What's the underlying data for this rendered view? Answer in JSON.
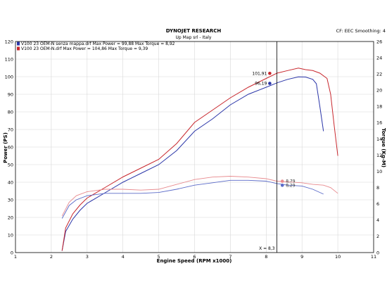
{
  "header": {
    "title": "DYNOJET RESEARCH",
    "subtitle": "Up Map srl - Italy",
    "corner": "CF: EEC  Smoothing: 4"
  },
  "chart_data": {
    "type": "line",
    "xlabel": "Engine Speed (RPM x1000)",
    "ylabel_left": "Power (PS)",
    "ylabel_right": "Torque (Kg-M)",
    "xlim": [
      1,
      11
    ],
    "ylim_left": [
      0,
      120
    ],
    "ylim_right": [
      0,
      26
    ],
    "x_ticks": [
      "1",
      "2",
      "3",
      "4",
      "5",
      "6",
      "7",
      "8",
      "9",
      "10",
      "11"
    ],
    "y_ticks_left": [
      "0",
      "10",
      "20",
      "30",
      "40",
      "50",
      "60",
      "70",
      "80",
      "90",
      "100",
      "110",
      "120"
    ],
    "y_ticks_right": [
      "0",
      "2",
      "4",
      "6",
      "8",
      "10",
      "12",
      "14",
      "16",
      "18",
      "20",
      "22",
      "24",
      "26"
    ],
    "grid": true,
    "legend": [
      {
        "text": "V100 23 OEM-N senza mappa.drf Max Power = 99,88    Max Torque = 8,92",
        "color": "#2a35a8"
      },
      {
        "text": "V100 23 OEM-N.drf Max Power = 104,86    Max Torque = 9,39",
        "color": "#c8262c"
      }
    ],
    "cursor": {
      "x": 8.3,
      "label": "X = 8,3"
    },
    "series": [
      {
        "color": "#2a35a8",
        "kind": "power",
        "x": [
          2.3,
          2.4,
          2.6,
          2.8,
          3.0,
          3.5,
          4.0,
          4.5,
          5.0,
          5.5,
          6.0,
          6.5,
          7.0,
          7.5,
          8.0,
          8.3,
          8.6,
          8.9,
          9.1,
          9.3,
          9.4,
          9.5,
          9.6
        ],
        "y": [
          1,
          12,
          19,
          24,
          28,
          34,
          40,
          45,
          50,
          58,
          69,
          76,
          84,
          90,
          94,
          96.5,
          98.5,
          99.9,
          99.8,
          98.5,
          96,
          83,
          69
        ]
      },
      {
        "color": "#c8262c",
        "kind": "power",
        "x": [
          2.3,
          2.4,
          2.6,
          2.8,
          3.0,
          3.5,
          4.0,
          4.5,
          5.0,
          5.5,
          6.0,
          6.5,
          7.0,
          7.5,
          8.0,
          8.3,
          8.6,
          8.9,
          9.1,
          9.3,
          9.5,
          9.7,
          9.8,
          9.9,
          10.0
        ],
        "y": [
          1,
          14,
          22,
          27,
          31,
          37,
          43,
          48,
          53,
          62,
          74,
          81,
          88,
          94,
          99,
          102,
          103.5,
          104.9,
          104,
          103.5,
          102,
          99,
          90,
          72,
          55
        ]
      },
      {
        "color": "#5a6ac8",
        "kind": "torque",
        "x": [
          2.3,
          2.5,
          2.7,
          3.0,
          3.5,
          4.0,
          4.5,
          5.0,
          5.5,
          6.0,
          6.5,
          7.0,
          7.5,
          8.0,
          8.3,
          8.6,
          9.0,
          9.3,
          9.6
        ],
        "y": [
          4.2,
          5.8,
          6.5,
          7.0,
          7.3,
          7.3,
          7.3,
          7.4,
          7.8,
          8.3,
          8.6,
          8.9,
          8.9,
          8.8,
          8.5,
          8.3,
          8.2,
          7.8,
          7.2
        ]
      },
      {
        "color": "#e88a8e",
        "kind": "torque",
        "x": [
          2.3,
          2.5,
          2.7,
          3.0,
          3.5,
          4.0,
          4.5,
          5.0,
          5.5,
          6.0,
          6.5,
          7.0,
          7.5,
          8.0,
          8.3,
          8.6,
          9.0,
          9.3,
          9.6,
          9.8,
          10.0
        ],
        "y": [
          4.5,
          6.2,
          7.0,
          7.5,
          7.8,
          7.8,
          7.7,
          7.8,
          8.4,
          9.0,
          9.3,
          9.4,
          9.3,
          9.1,
          8.8,
          8.7,
          8.6,
          8.4,
          8.3,
          8.0,
          7.3
        ]
      }
    ],
    "annotations": [
      {
        "text": "101,91",
        "color": "#c8262c",
        "x": 8.1,
        "y": 101.9,
        "axis": "left"
      },
      {
        "text": "96,19",
        "color": "#2a35a8",
        "x": 8.1,
        "y": 96.2,
        "axis": "left"
      },
      {
        "text": "8,79",
        "color": "#e88a8e",
        "x": 8.45,
        "y": 8.79,
        "axis": "right"
      },
      {
        "text": "8,29",
        "color": "#5a6ac8",
        "x": 8.45,
        "y": 8.29,
        "axis": "right"
      }
    ]
  }
}
